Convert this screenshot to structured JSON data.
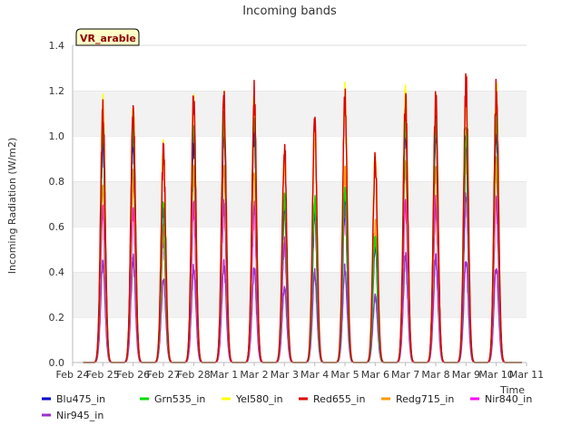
{
  "chart_data": {
    "type": "line",
    "title": "Incoming bands",
    "xlabel": "Time",
    "ylabel": "Incoming Radiation (W/m2)",
    "badge": "VR_arable",
    "xlim": [
      "Feb 24",
      "Mar 11"
    ],
    "ylim": [
      0,
      1.4
    ],
    "yticks": [
      "0.0",
      "0.2",
      "0.4",
      "0.6",
      "0.8",
      "1.0",
      "1.2",
      "1.4"
    ],
    "xtick_labels": [
      "Feb 24",
      "Feb 25",
      "Feb 26",
      "Feb 27",
      "Feb 28",
      "Mar 1",
      "Mar 2",
      "Mar 3",
      "Mar 4",
      "Mar 5",
      "Mar 6",
      "Mar 7",
      "Mar 8",
      "Mar 9",
      "Mar 10",
      "Mar 11"
    ],
    "grid": "horizontal bands",
    "legend_position": "bottom",
    "days": [
      "Feb 25",
      "Feb 26",
      "Feb 27",
      "Feb 28",
      "Mar 1",
      "Mar 2",
      "Mar 3",
      "Mar 4",
      "Mar 5",
      "Mar 6",
      "Mar 7",
      "Mar 8",
      "Mar 9",
      "Mar 10"
    ],
    "series": [
      {
        "name": "Blu475_in",
        "color": "#0000cc",
        "daily_peak": [
          1.05,
          1.07,
          0.72,
          1.05,
          1.1,
          1.1,
          0.75,
          0.72,
          0.78,
          0.55,
          1.1,
          1.1,
          1.02,
          1.1
        ]
      },
      {
        "name": "Grn535_in",
        "color": "#00dd00",
        "daily_peak": [
          1.1,
          1.12,
          0.75,
          1.12,
          1.15,
          1.15,
          0.78,
          0.75,
          0.82,
          0.58,
          1.15,
          1.15,
          1.08,
          1.15
        ]
      },
      {
        "name": "Yel580_in",
        "color": "#ffff00",
        "daily_peak": [
          1.2,
          1.2,
          1.0,
          1.2,
          1.23,
          1.24,
          0.95,
          1.1,
          1.24,
          0.99,
          1.26,
          1.22,
          1.28,
          1.28
        ]
      },
      {
        "name": "Red655_in",
        "color": "#dd0000",
        "daily_peak": [
          1.18,
          1.19,
          0.98,
          1.22,
          1.24,
          1.25,
          1.02,
          1.13,
          1.22,
          0.96,
          1.25,
          1.23,
          1.31,
          1.28
        ]
      },
      {
        "name": "Redg715_in",
        "color": "#ff9900",
        "daily_peak": [
          0.83,
          0.86,
          0.62,
          0.89,
          0.91,
          0.9,
          0.7,
          0.72,
          0.88,
          0.65,
          0.92,
          0.9,
          0.97,
          0.93
        ]
      },
      {
        "name": "Nir840_in",
        "color": "#ff00ff",
        "daily_peak": [
          0.7,
          0.71,
          0.58,
          0.72,
          0.73,
          0.72,
          0.56,
          0.7,
          0.73,
          0.56,
          0.75,
          0.74,
          0.78,
          0.75
        ]
      },
      {
        "name": "Nir945_in",
        "color": "#9933cc",
        "daily_peak": [
          0.46,
          0.49,
          0.4,
          0.44,
          0.46,
          0.43,
          0.36,
          0.42,
          0.44,
          0.32,
          0.49,
          0.49,
          0.48,
          0.45
        ]
      }
    ]
  }
}
